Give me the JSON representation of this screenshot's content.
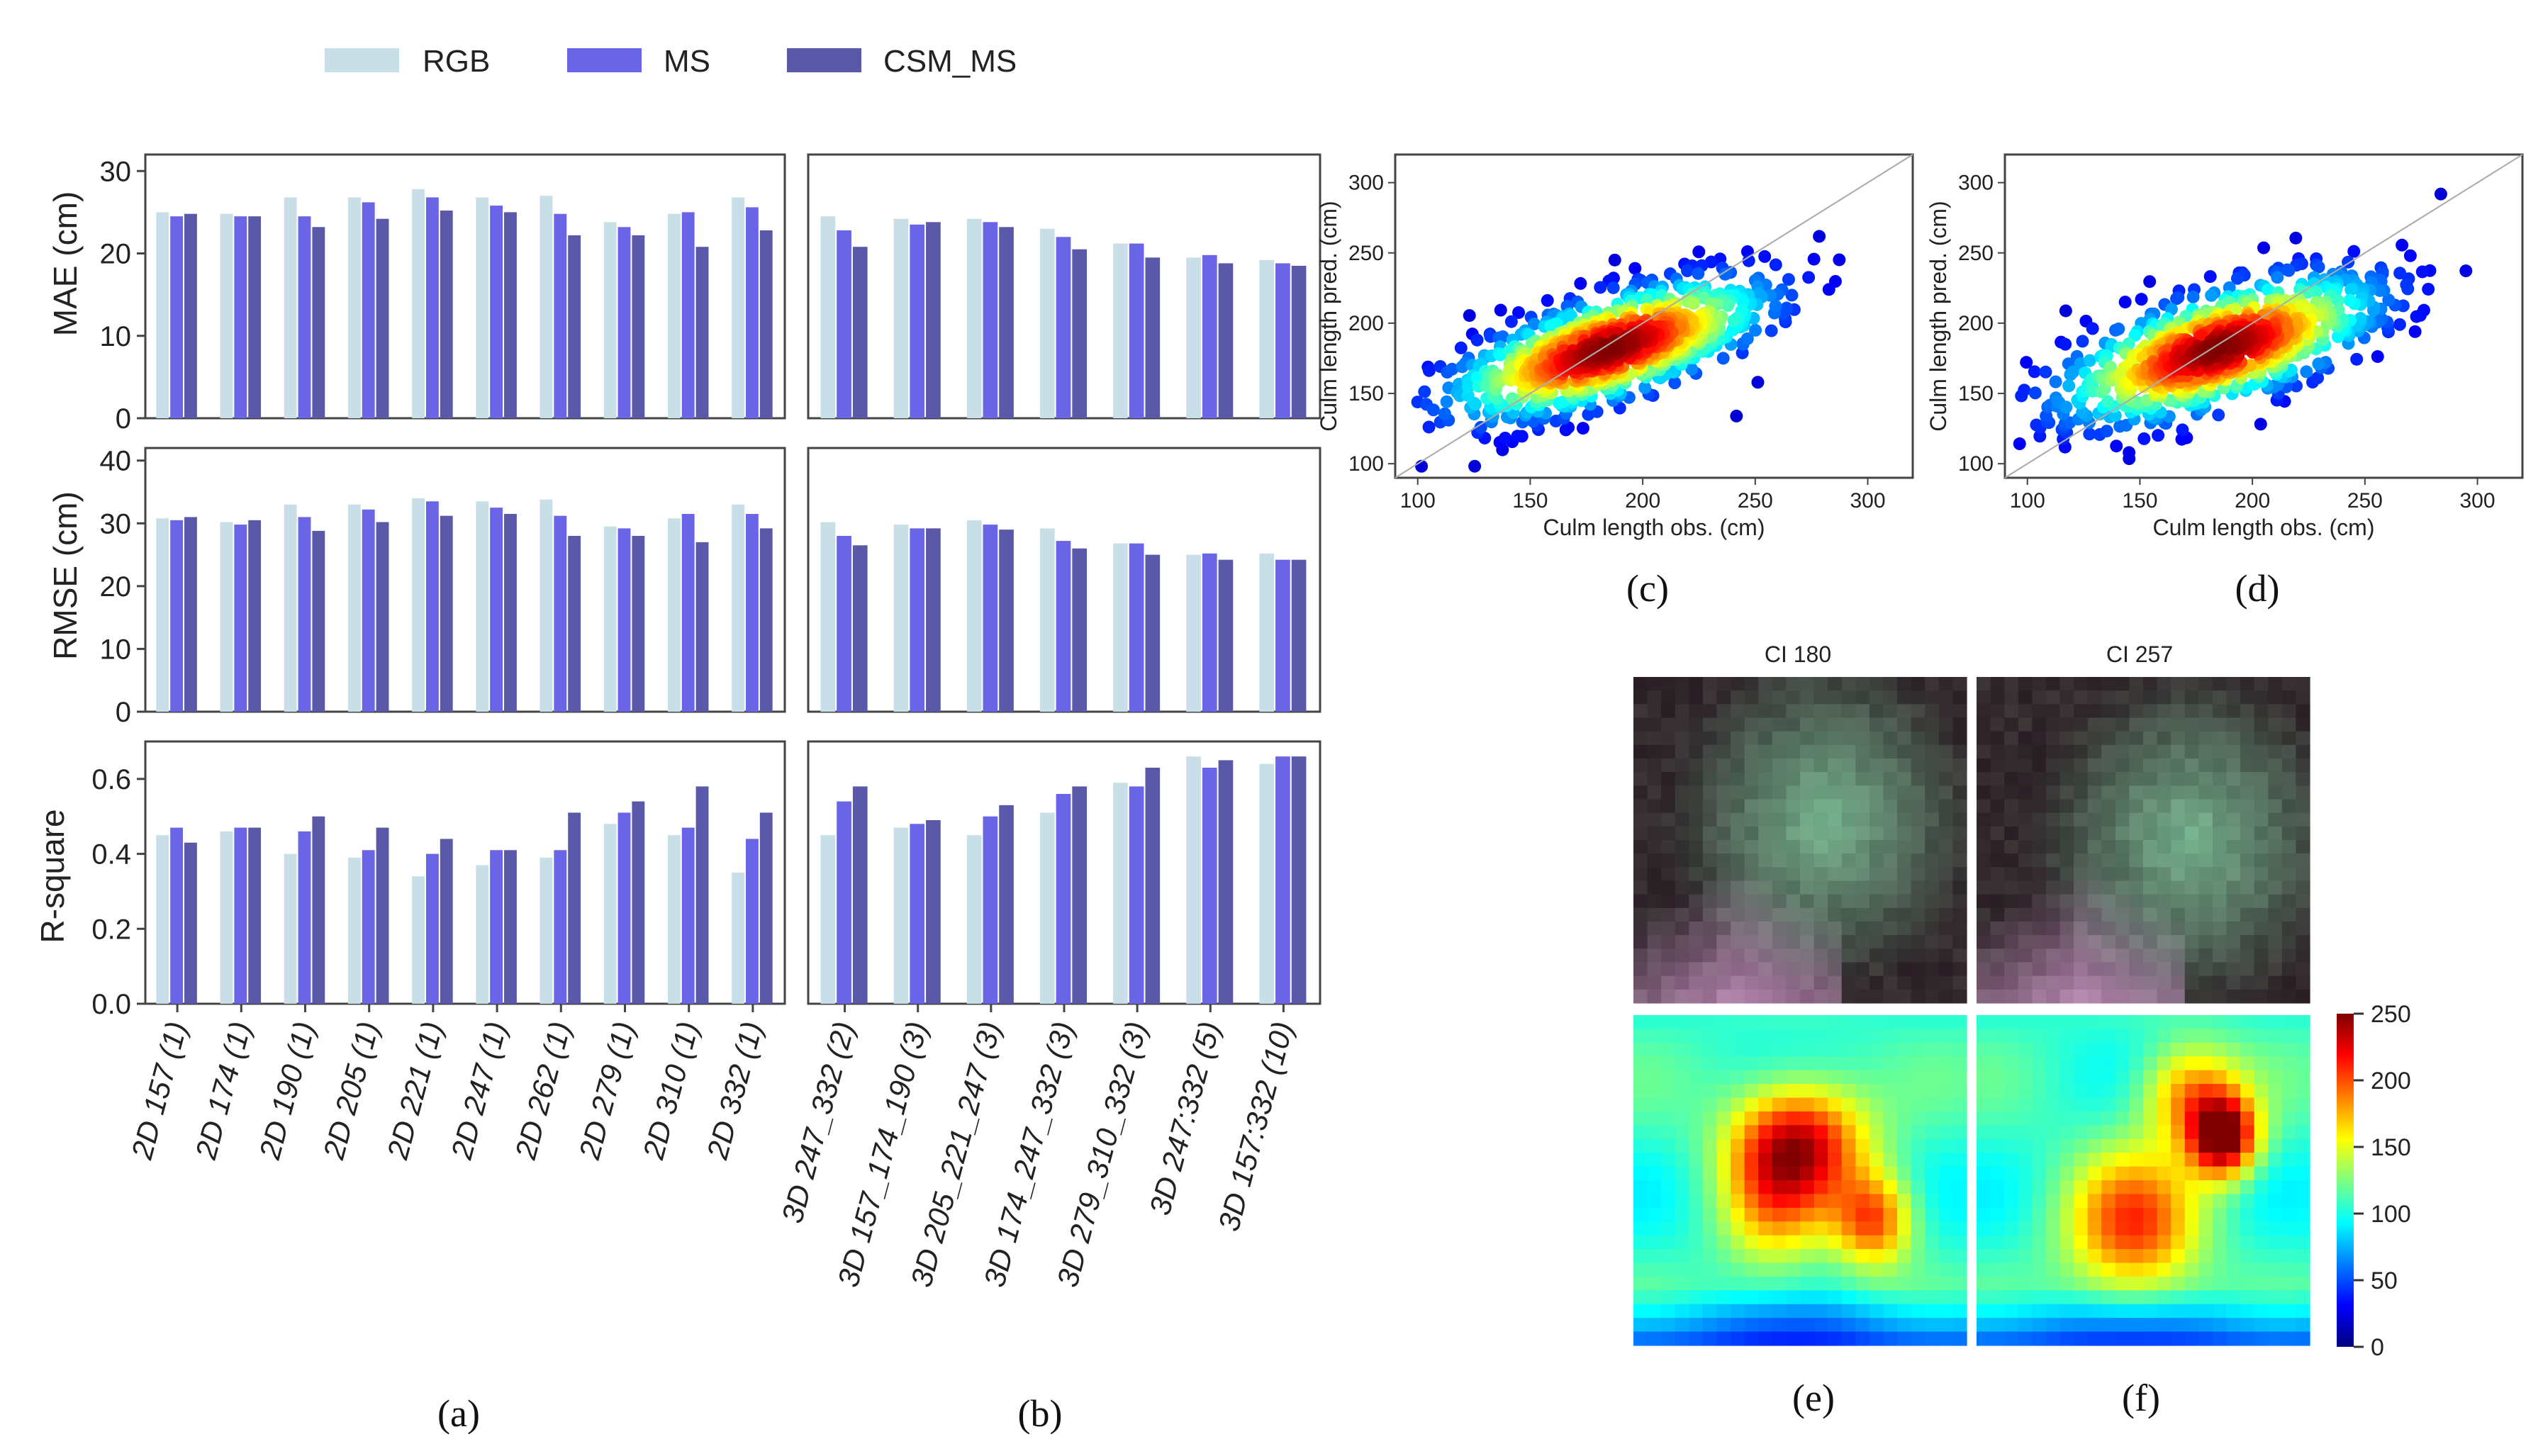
{
  "legend": {
    "items": [
      {
        "name": "RGB",
        "color": "#c9dfe7"
      },
      {
        "name": "MS",
        "color": "#6a64e6"
      },
      {
        "name": "CSM_MS",
        "color": "#5a58a8"
      }
    ]
  },
  "panel_labels": [
    "(a)",
    "(b)",
    "(c)",
    "(d)",
    "(e)",
    "(f)"
  ],
  "chart_data": [
    {
      "id": "a",
      "type": "bar",
      "categories": [
        "2D 157 (1)",
        "2D 174 (1)",
        "2D 190 (1)",
        "2D 205 (1)",
        "2D 221 (1)",
        "2D 247 (1)",
        "2D 262 (1)",
        "2D 279 (1)",
        "2D 310 (1)",
        "2D 332 (1)"
      ],
      "series_names": [
        "RGB",
        "MS",
        "CSM_MS"
      ],
      "metrics": [
        {
          "ylabel": "MAE (cm)",
          "ylim": [
            0,
            32
          ],
          "yticks": [
            "0",
            "10",
            "20",
            "30"
          ],
          "values": {
            "RGB": [
              25.0,
              24.8,
              26.8,
              26.8,
              27.8,
              26.8,
              27.0,
              23.8,
              24.8,
              26.8
            ],
            "MS": [
              24.5,
              24.5,
              24.5,
              26.2,
              26.8,
              25.8,
              24.8,
              23.2,
              25.0,
              25.6
            ],
            "CSM_MS": [
              24.8,
              24.5,
              23.2,
              24.2,
              25.2,
              25.0,
              22.2,
              22.2,
              20.8,
              22.8
            ]
          }
        },
        {
          "ylabel": "RMSE (cm)",
          "ylim": [
            0,
            42
          ],
          "yticks": [
            "0",
            "10",
            "20",
            "30",
            "40"
          ],
          "values": {
            "RGB": [
              30.8,
              30.2,
              33.0,
              33.0,
              34.0,
              33.5,
              33.8,
              29.5,
              30.8,
              33.0
            ],
            "MS": [
              30.5,
              29.8,
              31.0,
              32.2,
              33.5,
              32.5,
              31.2,
              29.2,
              31.5,
              31.5
            ],
            "CSM_MS": [
              31.0,
              30.5,
              28.8,
              30.2,
              31.2,
              31.5,
              28.0,
              28.0,
              27.0,
              29.2
            ]
          }
        },
        {
          "ylabel": "R-square",
          "ylim": [
            0,
            0.7
          ],
          "yticks": [
            "0.0",
            "0.2",
            "0.4",
            "0.6"
          ],
          "values": {
            "RGB": [
              0.45,
              0.46,
              0.4,
              0.39,
              0.34,
              0.37,
              0.39,
              0.48,
              0.45,
              0.35
            ],
            "MS": [
              0.47,
              0.47,
              0.46,
              0.41,
              0.4,
              0.41,
              0.41,
              0.51,
              0.47,
              0.44
            ],
            "CSM_MS": [
              0.43,
              0.47,
              0.5,
              0.47,
              0.44,
              0.41,
              0.51,
              0.54,
              0.58,
              0.51
            ]
          }
        }
      ]
    },
    {
      "id": "b",
      "type": "bar",
      "categories": [
        "3D 247_332 (2)",
        "3D 157_174_190 (3)",
        "3D 205_221_247 (3)",
        "3D 174_247_332 (3)",
        "3D 279_310_332 (3)",
        "3D 247:332 (5)",
        "3D 157:332 (10)"
      ],
      "series_names": [
        "RGB",
        "MS",
        "CSM_MS"
      ],
      "metrics": [
        {
          "ylim": [
            0,
            32
          ],
          "values": {
            "RGB": [
              24.5,
              24.2,
              24.2,
              23.0,
              21.2,
              19.5,
              19.2
            ],
            "MS": [
              22.8,
              23.5,
              23.8,
              22.0,
              21.2,
              19.8,
              18.8
            ],
            "CSM_MS": [
              20.8,
              23.8,
              23.2,
              20.5,
              19.5,
              18.8,
              18.5
            ]
          }
        },
        {
          "ylim": [
            0,
            42
          ],
          "values": {
            "RGB": [
              30.2,
              29.8,
              30.5,
              29.2,
              26.8,
              25.0,
              25.2
            ],
            "MS": [
              28.0,
              29.2,
              29.8,
              27.2,
              26.8,
              25.2,
              24.2
            ],
            "CSM_MS": [
              26.5,
              29.2,
              29.0,
              26.0,
              25.0,
              24.2,
              24.2
            ]
          }
        },
        {
          "ylim": [
            0,
            0.7
          ],
          "values": {
            "RGB": [
              0.45,
              0.47,
              0.45,
              0.51,
              0.59,
              0.66,
              0.64
            ],
            "MS": [
              0.54,
              0.48,
              0.5,
              0.56,
              0.58,
              0.63,
              0.66
            ],
            "CSM_MS": [
              0.58,
              0.49,
              0.53,
              0.58,
              0.63,
              0.65,
              0.66
            ]
          }
        }
      ]
    },
    {
      "id": "c",
      "type": "scatter",
      "xlabel": "Culm length obs. (cm)",
      "ylabel": "Culm length pred. (cm)",
      "xlim": [
        90,
        320
      ],
      "ylim": [
        90,
        320
      ],
      "xticks": [
        100,
        150,
        200,
        250,
        300
      ],
      "yticks": [
        100,
        150,
        200,
        250,
        300
      ],
      "density_center": [
        185,
        182
      ],
      "spread": [
        38,
        30
      ],
      "n_points": 900,
      "seed": 11
    },
    {
      "id": "d",
      "type": "scatter",
      "xlabel": "Culm length obs. (cm)",
      "ylabel": "Culm length pred. (cm)",
      "xlim": [
        90,
        320
      ],
      "ylim": [
        90,
        320
      ],
      "xticks": [
        100,
        150,
        200,
        250,
        300
      ],
      "yticks": [
        100,
        150,
        200,
        250,
        300
      ],
      "density_center": [
        185,
        182
      ],
      "spread": [
        38,
        33
      ],
      "n_points": 900,
      "seed": 23
    },
    {
      "id": "ef",
      "type": "heatmap",
      "titles": [
        "CI 180",
        "CI 257"
      ],
      "colorbar": {
        "min": 0,
        "max": 250,
        "ticks": [
          "0",
          "50",
          "100",
          "150",
          "200",
          "250"
        ]
      }
    }
  ]
}
